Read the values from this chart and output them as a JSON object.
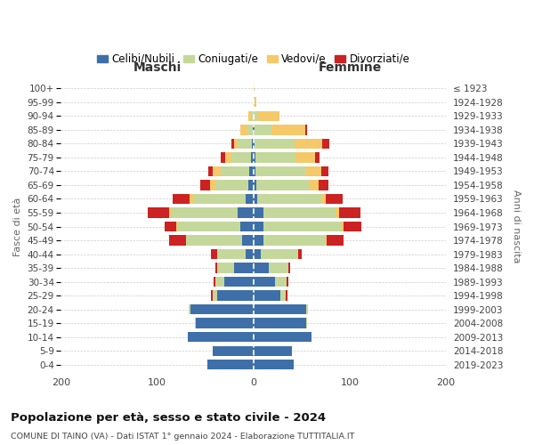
{
  "age_groups": [
    "0-4",
    "5-9",
    "10-14",
    "15-19",
    "20-24",
    "25-29",
    "30-34",
    "35-39",
    "40-44",
    "45-49",
    "50-54",
    "55-59",
    "60-64",
    "65-69",
    "70-74",
    "75-79",
    "80-84",
    "85-89",
    "90-94",
    "95-99",
    "100+"
  ],
  "birth_years": [
    "2019-2023",
    "2014-2018",
    "2009-2013",
    "2004-2008",
    "1999-2003",
    "1994-1998",
    "1989-1993",
    "1984-1988",
    "1979-1983",
    "1974-1978",
    "1969-1973",
    "1964-1968",
    "1959-1963",
    "1954-1958",
    "1949-1953",
    "1944-1948",
    "1939-1943",
    "1934-1938",
    "1929-1933",
    "1924-1928",
    "≤ 1923"
  ],
  "colors": {
    "celibi": "#3e6fa8",
    "coniugati": "#c5d89b",
    "vedovi": "#f5c96a",
    "divorziati": "#cc2222"
  },
  "maschi": {
    "celibi": [
      48,
      42,
      68,
      60,
      65,
      38,
      30,
      20,
      8,
      12,
      14,
      16,
      8,
      5,
      4,
      3,
      2,
      1,
      0,
      0,
      0
    ],
    "coniugati": [
      0,
      0,
      0,
      1,
      2,
      4,
      10,
      18,
      30,
      58,
      65,
      70,
      55,
      35,
      30,
      20,
      14,
      5,
      2,
      0,
      0
    ],
    "vedovi": [
      0,
      0,
      0,
      0,
      0,
      0,
      0,
      0,
      0,
      0,
      1,
      2,
      3,
      5,
      8,
      6,
      4,
      8,
      3,
      0,
      0
    ],
    "divorziati": [
      0,
      0,
      0,
      0,
      0,
      2,
      1,
      2,
      6,
      18,
      12,
      22,
      18,
      10,
      5,
      5,
      3,
      0,
      0,
      0,
      0
    ]
  },
  "femmine": {
    "celibi": [
      42,
      40,
      60,
      55,
      55,
      28,
      22,
      16,
      8,
      10,
      10,
      10,
      4,
      3,
      2,
      2,
      1,
      1,
      0,
      0,
      0
    ],
    "coniugati": [
      0,
      0,
      0,
      1,
      2,
      5,
      12,
      20,
      38,
      65,
      82,
      75,
      66,
      55,
      52,
      42,
      42,
      18,
      5,
      1,
      0
    ],
    "vedovi": [
      0,
      0,
      0,
      0,
      0,
      0,
      0,
      0,
      0,
      1,
      2,
      4,
      5,
      10,
      16,
      20,
      28,
      35,
      22,
      2,
      1
    ],
    "divorziati": [
      0,
      0,
      0,
      0,
      0,
      2,
      2,
      2,
      4,
      18,
      18,
      22,
      18,
      10,
      8,
      5,
      8,
      2,
      0,
      0,
      0
    ]
  },
  "xlim": 200,
  "title": "Popolazione per età, sesso e stato civile - 2024",
  "subtitle": "COMUNE DI TAINO (VA) - Dati ISTAT 1° gennaio 2024 - Elaborazione TUTTITALIA.IT",
  "ylabel_left": "Fasce di età",
  "ylabel_right": "Anni di nascita"
}
